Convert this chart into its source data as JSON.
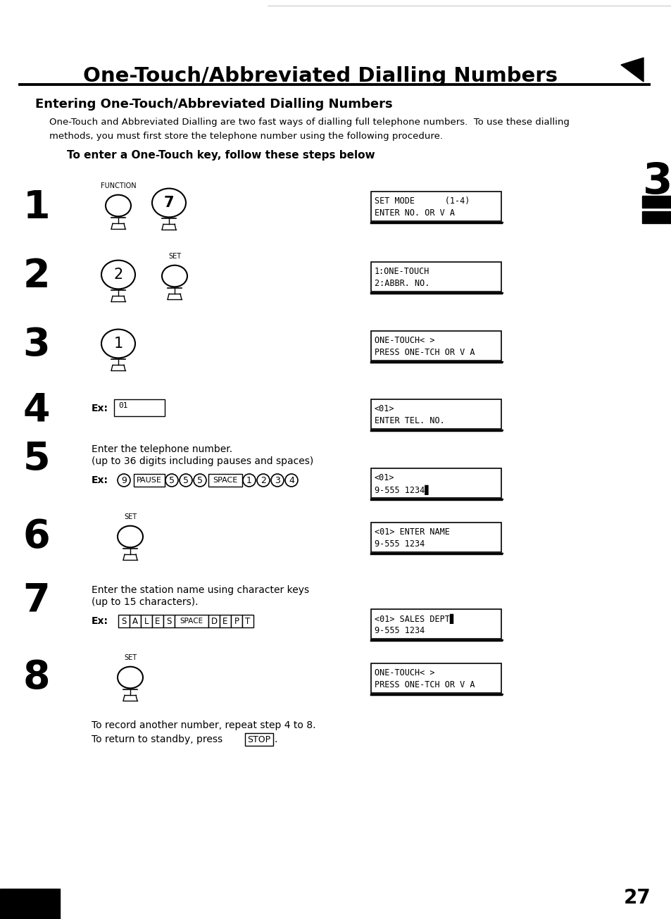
{
  "title": "One-Touch/Abbreviated Dialling Numbers",
  "subtitle": "Entering One-Touch/Abbreviated Dialling Numbers",
  "intro_line1": "One-Touch and Abbreviated Dialling are two fast ways of dialling full telephone numbers.  To use these dialling",
  "intro_line2": "methods, you must first store the telephone number using the following procedure.",
  "subheading": "To enter a One-Touch key, follow these steps below",
  "page_number": "27",
  "section_number": "3",
  "displays": [
    "SET MODE      (1-4)\nENTER NO. OR V A",
    "1:ONE-TOUCH\n2:ABBR. NO.",
    "ONE-TOUCH< >\nPRESS ONE-TCH OR V A",
    "<01>\nENTER TEL. NO.",
    "<01>\n9-555 1234▊",
    "<01> ENTER NAME\n9-555 1234",
    "<01> SALES DEPT▊\n9-555 1234",
    "ONE-TOUCH< >\nPRESS ONE-TCH OR V A"
  ],
  "footer_line1": "To record another number, repeat step 4 to 8.",
  "footer_line2_pre": "To return to standby, press ",
  "footer_line2_stop": "STOP",
  "footer_line2_post": ".",
  "bg_color": "#ffffff"
}
